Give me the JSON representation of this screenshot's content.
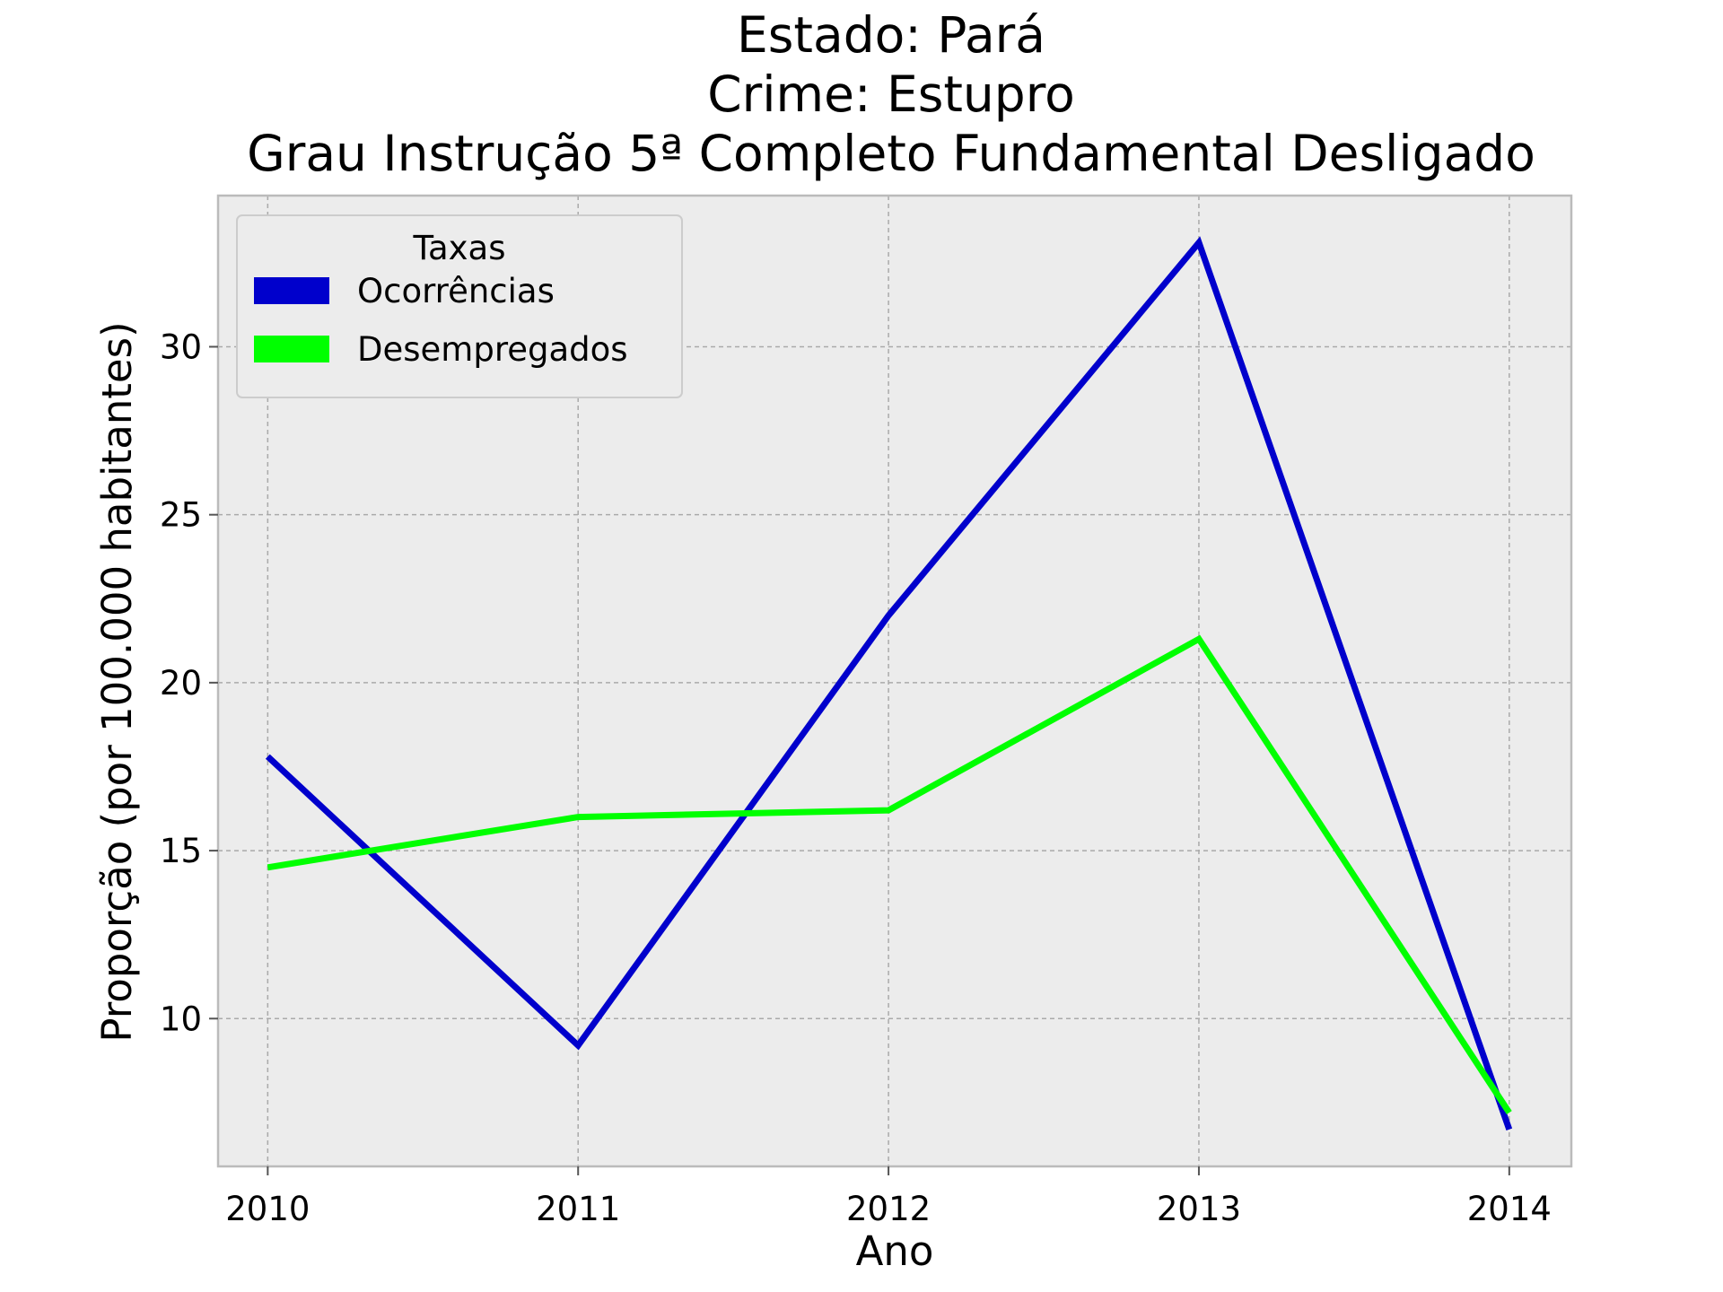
{
  "chart_data": {
    "type": "line",
    "title_lines": [
      "Estado: Pará",
      "Crime: Estupro",
      "Grau Instrução  5ª Completo Fundamental   Desligado"
    ],
    "xlabel": "Ano",
    "ylabel": "Proporção (por 100.000 habitantes)",
    "x": [
      2010,
      2011,
      2012,
      2013,
      2014
    ],
    "x_tick_labels": [
      "2010",
      "2011",
      "2012",
      "2013",
      "2014"
    ],
    "y_ticks": [
      10,
      15,
      20,
      25,
      30
    ],
    "y_tick_labels": [
      "10",
      "15",
      "20",
      "25",
      "30"
    ],
    "xlim": [
      2009.84,
      2014.2
    ],
    "ylim": [
      5.6,
      34.5
    ],
    "grid": true,
    "legend": {
      "title": "Taxas",
      "placement": "upper-left"
    },
    "series": [
      {
        "name": "Ocorrências",
        "color": "#0000cc",
        "values": [
          17.8,
          9.2,
          22.0,
          33.1,
          6.7
        ]
      },
      {
        "name": "Desempregados",
        "color": "#00ff00",
        "values": [
          14.5,
          16.0,
          16.2,
          21.3,
          7.2
        ]
      }
    ],
    "colors": {
      "plot_background": "#ececec",
      "grid": "#aaaaaa",
      "frame": "#bbbbbb"
    }
  }
}
